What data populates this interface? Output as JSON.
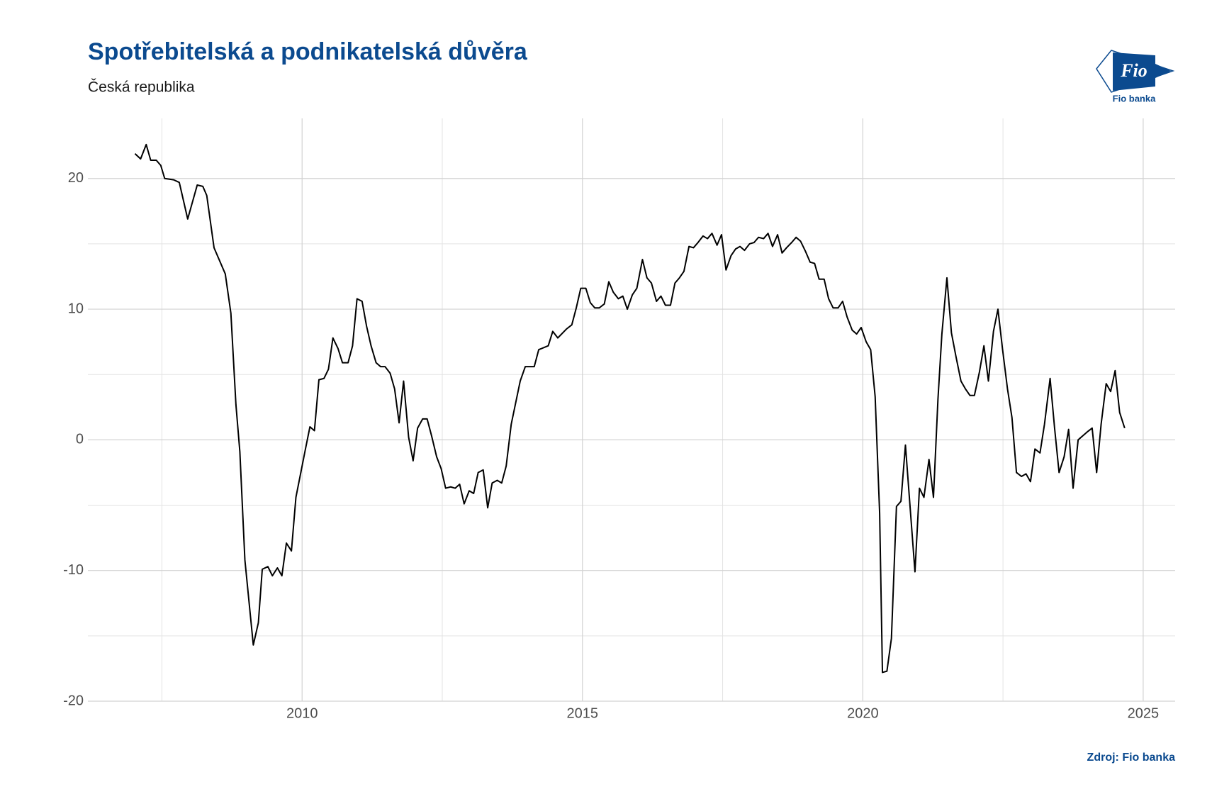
{
  "chart_data": {
    "type": "line",
    "title": "Spotřebitelská a podnikatelská důvěra",
    "subtitle": "Česká republika",
    "source": "Zdroj: Fio banka",
    "logo": {
      "mark": "Fio",
      "name": "Fio banka"
    },
    "grid": true,
    "xlim": [
      2006.18,
      2025.57
    ],
    "xticks": [
      2010,
      2015,
      2020,
      2025
    ],
    "ylim": [
      -20,
      24.6
    ],
    "yticks": [
      -20,
      -10,
      0,
      10,
      20
    ],
    "x": [
      2007.02,
      2007.12,
      2007.22,
      2007.3,
      2007.4,
      2007.48,
      2007.55,
      2007.71,
      2007.81,
      2007.96,
      2008.13,
      2008.23,
      2008.3,
      2008.43,
      2008.63,
      2008.73,
      2008.82,
      2008.89,
      2008.98,
      2009.13,
      2009.22,
      2009.29,
      2009.39,
      2009.47,
      2009.56,
      2009.64,
      2009.72,
      2009.81,
      2009.89,
      2010.06,
      2010.14,
      2010.22,
      2010.3,
      2010.39,
      2010.47,
      2010.55,
      2010.64,
      2010.72,
      2010.82,
      2010.9,
      2010.98,
      2011.07,
      2011.15,
      2011.23,
      2011.32,
      2011.4,
      2011.48,
      2011.57,
      2011.65,
      2011.73,
      2011.81,
      2011.9,
      2011.98,
      2012.06,
      2012.15,
      2012.23,
      2012.31,
      2012.4,
      2012.48,
      2012.56,
      2012.65,
      2012.73,
      2012.81,
      2012.89,
      2012.98,
      2013.06,
      2013.14,
      2013.23,
      2013.31,
      2013.39,
      2013.48,
      2013.56,
      2013.64,
      2013.73,
      2013.89,
      2013.98,
      2014.14,
      2014.22,
      2014.39,
      2014.47,
      2014.56,
      2014.72,
      2014.81,
      2014.89,
      2014.97,
      2015.06,
      2015.14,
      2015.22,
      2015.3,
      2015.39,
      2015.47,
      2015.55,
      2015.64,
      2015.72,
      2015.8,
      2015.89,
      2015.97,
      2016.07,
      2016.15,
      2016.23,
      2016.32,
      2016.4,
      2016.48,
      2016.57,
      2016.65,
      2016.73,
      2016.81,
      2016.9,
      2016.98,
      2017.06,
      2017.15,
      2017.23,
      2017.31,
      2017.4,
      2017.48,
      2017.56,
      2017.65,
      2017.73,
      2017.81,
      2017.89,
      2017.98,
      2018.06,
      2018.14,
      2018.23,
      2018.31,
      2018.39,
      2018.48,
      2018.56,
      2018.64,
      2018.73,
      2018.81,
      2018.89,
      2018.98,
      2019.06,
      2019.14,
      2019.22,
      2019.31,
      2019.39,
      2019.47,
      2019.56,
      2019.64,
      2019.72,
      2019.81,
      2019.89,
      2019.97,
      2020.06,
      2020.14,
      2020.22,
      2020.3,
      2020.35,
      2020.43,
      2020.51,
      2020.6,
      2020.68,
      2020.76,
      2020.93,
      2021.01,
      2021.09,
      2021.18,
      2021.26,
      2021.34,
      2021.41,
      2021.5,
      2021.58,
      2021.66,
      2021.75,
      2021.83,
      2021.91,
      2021.99,
      2022.08,
      2022.16,
      2022.24,
      2022.33,
      2022.41,
      2022.49,
      2022.58,
      2022.66,
      2022.74,
      2022.83,
      2022.91,
      2022.99,
      2023.07,
      2023.16,
      2023.24,
      2023.34,
      2023.42,
      2023.5,
      2023.59,
      2023.67,
      2023.75,
      2023.84,
      2023.92,
      2024.0,
      2024.09,
      2024.17,
      2024.25,
      2024.34,
      2024.42,
      2024.5,
      2024.58,
      2024.67
    ],
    "series": [
      {
        "color": "#000000",
        "values": [
          21.9,
          21.5,
          22.6,
          21.4,
          21.4,
          21.0,
          20.0,
          19.9,
          19.7,
          16.9,
          19.5,
          19.4,
          18.7,
          14.7,
          12.7,
          9.7,
          2.7,
          -0.9,
          -9.2,
          -15.7,
          -14.0,
          -9.9,
          -9.7,
          -10.4,
          -9.8,
          -10.4,
          -7.9,
          -8.5,
          -4.4,
          -0.7,
          1.0,
          0.7,
          4.6,
          4.7,
          5.4,
          7.8,
          7.0,
          5.9,
          5.9,
          7.2,
          10.8,
          10.6,
          8.7,
          7.2,
          5.9,
          5.6,
          5.6,
          5.1,
          3.9,
          1.3,
          4.5,
          0.2,
          -1.6,
          0.9,
          1.6,
          1.6,
          0.3,
          -1.3,
          -2.2,
          -3.7,
          -3.6,
          -3.7,
          -3.4,
          -4.9,
          -3.9,
          -4.1,
          -2.5,
          -2.3,
          -5.2,
          -3.3,
          -3.1,
          -3.3,
          -2.0,
          1.2,
          4.5,
          5.6,
          5.6,
          6.9,
          7.2,
          8.3,
          7.8,
          8.5,
          8.8,
          10.1,
          11.6,
          11.6,
          10.5,
          10.1,
          10.1,
          10.4,
          12.1,
          11.3,
          10.8,
          11.0,
          10.0,
          11.1,
          11.6,
          13.8,
          12.4,
          12.0,
          10.6,
          11.0,
          10.3,
          10.3,
          12.0,
          12.4,
          12.9,
          14.8,
          14.7,
          15.1,
          15.6,
          15.4,
          15.8,
          14.9,
          15.7,
          13.0,
          14.1,
          14.6,
          14.8,
          14.5,
          15.0,
          15.1,
          15.5,
          15.4,
          15.8,
          14.8,
          15.7,
          14.3,
          14.7,
          15.1,
          15.5,
          15.2,
          14.4,
          13.6,
          13.5,
          12.3,
          12.3,
          10.8,
          10.1,
          10.1,
          10.6,
          9.4,
          8.4,
          8.1,
          8.6,
          7.5,
          6.9,
          3.3,
          -5.6,
          -17.8,
          -17.7,
          -15.2,
          -5.1,
          -4.7,
          -0.4,
          -10.1,
          -3.7,
          -4.4,
          -1.5,
          -4.4,
          3.1,
          8.1,
          12.4,
          8.2,
          6.4,
          4.5,
          3.9,
          3.4,
          3.4,
          5.2,
          7.2,
          4.5,
          8.3,
          10.0,
          7.0,
          3.9,
          1.7,
          -2.5,
          -2.8,
          -2.6,
          -3.2,
          -0.7,
          -1.0,
          1.2,
          4.7,
          0.9,
          -2.5,
          -1.3,
          0.8,
          -3.7,
          0.0,
          0.3,
          0.6,
          0.9,
          -2.5,
          1.2,
          4.3,
          3.7,
          5.3,
          2.1,
          0.9
        ]
      }
    ]
  }
}
